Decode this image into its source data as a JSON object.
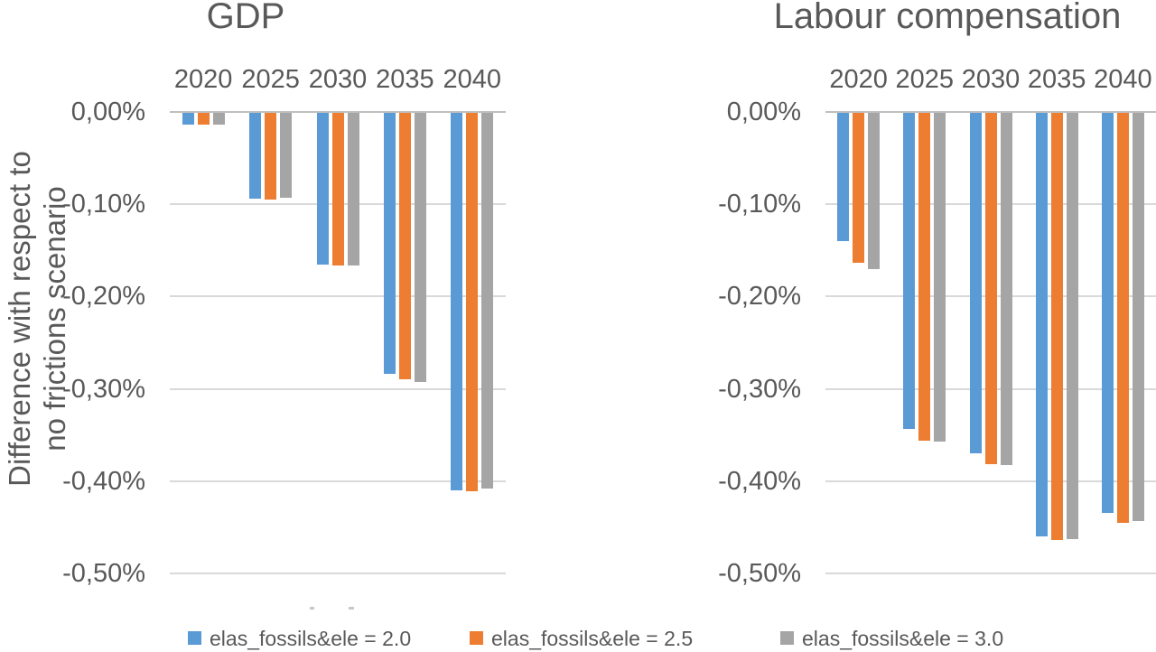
{
  "figure": {
    "background": "#ffffff",
    "text_color": "#595959",
    "gridline_color": "#d9d9d9",
    "zero_line_color": "#bfbfbf"
  },
  "axis_title": {
    "line1": "Difference with respect to",
    "line2": "no frictions scenario"
  },
  "legend": {
    "position": "bottom",
    "items": [
      {
        "label": "elas_fossils&ele = 2.0",
        "color": "#5B9BD5"
      },
      {
        "label": "elas_fossils&ele = 2.5",
        "color": "#ED7D31"
      },
      {
        "label": "elas_fossils&ele = 3.0",
        "color": "#A5A5A5"
      }
    ]
  },
  "chart_data": [
    {
      "type": "bar",
      "title": "GDP",
      "xlabel": "",
      "ylabel": "Difference with respect to no frictions scenario",
      "value_format": "percent, comma decimal",
      "ylim": [
        -0.5,
        0
      ],
      "grid": true,
      "categories": [
        "2020",
        "2025",
        "2030",
        "2035",
        "2040"
      ],
      "yticks": {
        "labels": [
          "0,00%",
          "-0,10%",
          "-0,20%",
          "-0,30%",
          "-0,40%",
          "-0,50%"
        ],
        "values": [
          0,
          -0.1,
          -0.2,
          -0.3,
          -0.4,
          -0.5
        ]
      },
      "series": [
        {
          "name": "elas_fossils&ele = 2.0",
          "color": "#5B9BD5",
          "values": [
            -0.013,
            -0.093,
            -0.164,
            -0.283,
            -0.409
          ]
        },
        {
          "name": "elas_fossils&ele = 2.5",
          "color": "#ED7D31",
          "values": [
            -0.013,
            -0.094,
            -0.165,
            -0.289,
            -0.41
          ]
        },
        {
          "name": "elas_fossils&ele = 3.0",
          "color": "#A5A5A5",
          "values": [
            -0.013,
            -0.092,
            -0.165,
            -0.292,
            -0.407
          ]
        }
      ]
    },
    {
      "type": "bar",
      "title": "Labour compensation",
      "xlabel": "",
      "ylabel": "",
      "value_format": "percent, comma decimal",
      "ylim": [
        -0.5,
        0
      ],
      "grid": true,
      "categories": [
        "2020",
        "2025",
        "2030",
        "2035",
        "2040"
      ],
      "yticks": {
        "labels": [
          "0,00%",
          "-0,10%",
          "-0,20%",
          "-0,30%",
          "-0,40%",
          "-0,50%"
        ],
        "values": [
          0,
          -0.1,
          -0.2,
          -0.3,
          -0.4,
          -0.5
        ]
      },
      "series": [
        {
          "name": "elas_fossils&ele = 2.0",
          "color": "#5B9BD5",
          "values": [
            -0.139,
            -0.342,
            -0.369,
            -0.459,
            -0.433
          ]
        },
        {
          "name": "elas_fossils&ele = 2.5",
          "color": "#ED7D31",
          "values": [
            -0.162,
            -0.355,
            -0.381,
            -0.463,
            -0.444
          ]
        },
        {
          "name": "elas_fossils&ele = 3.0",
          "color": "#A5A5A5",
          "values": [
            -0.169,
            -0.356,
            -0.382,
            -0.462,
            -0.442
          ]
        }
      ]
    }
  ]
}
